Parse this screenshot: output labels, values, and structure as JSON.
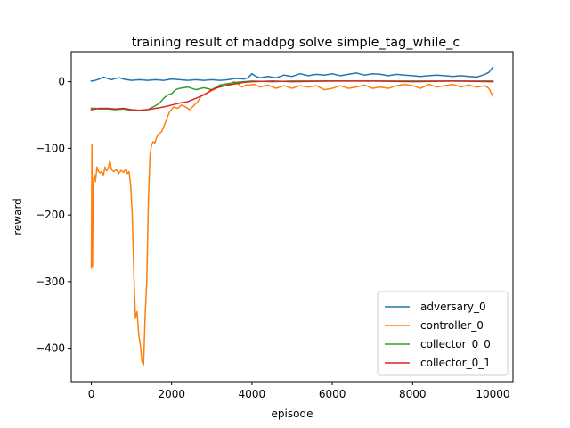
{
  "chart_data": {
    "type": "line",
    "title": "training result of maddpg solve simple_tag_while_c",
    "xlabel": "episode",
    "ylabel": "reward",
    "xlim": [
      -500,
      10500
    ],
    "ylim": [
      -450,
      45
    ],
    "xticks": [
      0,
      2000,
      4000,
      6000,
      8000,
      10000
    ],
    "xtick_labels": [
      "0",
      "2000",
      "4000",
      "6000",
      "8000",
      "10000"
    ],
    "yticks": [
      -400,
      -300,
      -200,
      -100,
      0
    ],
    "ytick_labels": [
      "−400",
      "−300",
      "−200",
      "−100",
      "0"
    ],
    "grid": false,
    "legend_position": "lower right",
    "series": [
      {
        "name": "adversary_0",
        "color": "#1f77b4",
        "x": [
          0,
          100,
          200,
          300,
          400,
          500,
          600,
          700,
          800,
          900,
          1000,
          1200,
          1400,
          1600,
          1800,
          2000,
          2200,
          2400,
          2600,
          2800,
          3000,
          3200,
          3400,
          3600,
          3800,
          3900,
          4000,
          4100,
          4200,
          4400,
          4600,
          4800,
          5000,
          5200,
          5400,
          5600,
          5800,
          6000,
          6200,
          6400,
          6600,
          6800,
          7000,
          7200,
          7400,
          7600,
          7800,
          8000,
          8200,
          8400,
          8600,
          8800,
          9000,
          9200,
          9400,
          9600,
          9800,
          9900,
          10000
        ],
        "y": [
          1,
          2,
          4,
          7,
          5,
          3,
          5,
          6,
          4,
          3,
          2,
          3,
          2,
          3,
          2,
          4,
          3,
          2,
          3,
          2,
          3,
          2,
          3,
          5,
          4,
          6,
          12,
          8,
          6,
          8,
          6,
          10,
          8,
          12,
          9,
          11,
          10,
          12,
          9,
          11,
          13,
          10,
          12,
          11,
          9,
          11,
          10,
          9,
          8,
          9,
          10,
          9,
          8,
          9,
          8,
          7,
          11,
          14,
          22
        ]
      },
      {
        "name": "controller_0",
        "color": "#ff7f0e",
        "x": [
          0,
          15,
          30,
          45,
          60,
          80,
          100,
          140,
          180,
          220,
          260,
          300,
          340,
          380,
          420,
          460,
          500,
          560,
          620,
          680,
          740,
          800,
          860,
          900,
          940,
          980,
          1020,
          1060,
          1100,
          1140,
          1180,
          1220,
          1260,
          1300,
          1340,
          1380,
          1420,
          1460,
          1500,
          1540,
          1580,
          1650,
          1750,
          1850,
          1950,
          2050,
          2150,
          2250,
          2350,
          2450,
          2550,
          2650,
          2750,
          2850,
          2950,
          3050,
          3150,
          3250,
          3350,
          3450,
          3550,
          3650,
          3750,
          3850,
          3950,
          4050,
          4200,
          4400,
          4600,
          4800,
          5000,
          5200,
          5400,
          5600,
          5800,
          6000,
          6200,
          6400,
          6600,
          6800,
          7000,
          7200,
          7400,
          7600,
          7800,
          8000,
          8200,
          8400,
          8600,
          8800,
          9000,
          9200,
          9400,
          9600,
          9800,
          9900,
          10000
        ],
        "y": [
          -280,
          -95,
          -277,
          -160,
          -145,
          -140,
          -150,
          -128,
          -135,
          -137,
          -135,
          -140,
          -128,
          -134,
          -130,
          -118,
          -132,
          -135,
          -132,
          -138,
          -133,
          -136,
          -131,
          -138,
          -135,
          -155,
          -200,
          -290,
          -355,
          -345,
          -380,
          -395,
          -420,
          -425,
          -350,
          -300,
          -180,
          -110,
          -95,
          -90,
          -92,
          -80,
          -75,
          -60,
          -45,
          -38,
          -40,
          -35,
          -38,
          -42,
          -36,
          -30,
          -20,
          -18,
          -15,
          -12,
          -8,
          -6,
          -3,
          -5,
          0,
          -3,
          -8,
          -5,
          -5,
          -4,
          -8,
          -5,
          -10,
          -6,
          -10,
          -6,
          -8,
          -6,
          -12,
          -10,
          -6,
          -10,
          -8,
          -5,
          -10,
          -8,
          -10,
          -6,
          -4,
          -6,
          -10,
          -4,
          -8,
          -6,
          -4,
          -8,
          -5,
          -8,
          -6,
          -10,
          -22
        ]
      },
      {
        "name": "collector_0_0",
        "color": "#2ca02c",
        "x": [
          0,
          100,
          200,
          400,
          600,
          800,
          1000,
          1200,
          1400,
          1600,
          1700,
          1800,
          1900,
          2000,
          2100,
          2200,
          2400,
          2600,
          2800,
          3000,
          3200,
          3400,
          3600,
          3800,
          4000,
          4500,
          5000,
          6000,
          7000,
          8000,
          9000,
          10000
        ],
        "y": [
          -40,
          -40,
          -41,
          -41,
          -42,
          -41,
          -43,
          -43,
          -42,
          -36,
          -32,
          -25,
          -20,
          -18,
          -12,
          -10,
          -8,
          -12,
          -9,
          -12,
          -5,
          -3,
          -1,
          0,
          1,
          0,
          1,
          1,
          1,
          1,
          1,
          1
        ]
      },
      {
        "name": "collector_0_1",
        "color": "#d62728",
        "x": [
          0,
          100,
          200,
          400,
          600,
          800,
          1000,
          1200,
          1400,
          1600,
          1800,
          2000,
          2200,
          2400,
          2600,
          2800,
          3000,
          3100,
          3200,
          3400,
          3600,
          3800,
          4000,
          4500,
          5000,
          6000,
          7000,
          8000,
          9000,
          10000
        ],
        "y": [
          -42,
          -41,
          -40,
          -40,
          -41,
          -40,
          -42,
          -43,
          -42,
          -40,
          -38,
          -35,
          -32,
          -30,
          -25,
          -20,
          -12,
          -10,
          -8,
          -5,
          -3,
          -1,
          0,
          1,
          0,
          1,
          1,
          0,
          1,
          0
        ]
      }
    ]
  }
}
